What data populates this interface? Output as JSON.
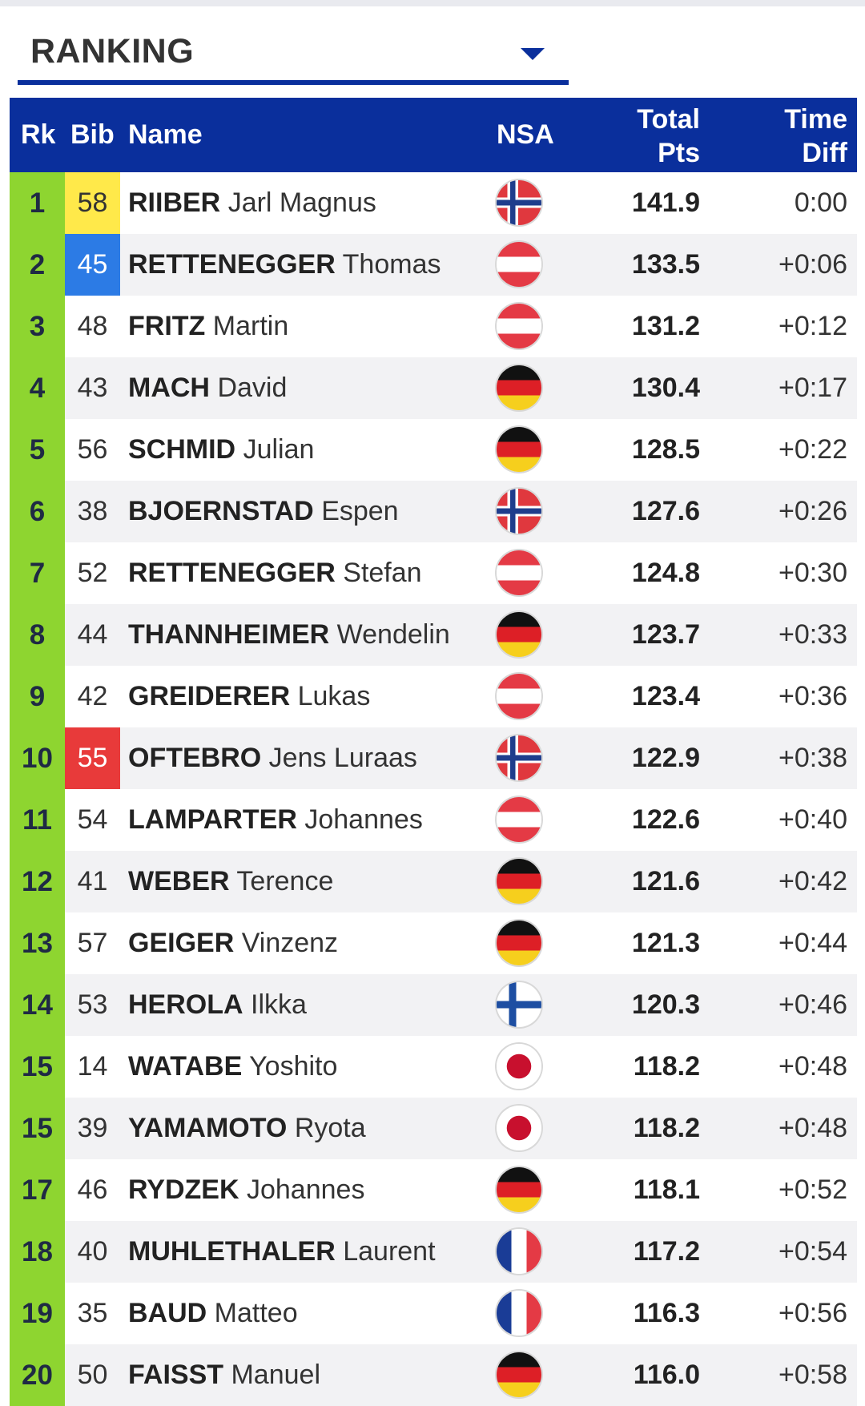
{
  "dropdown": {
    "label": "RANKING"
  },
  "table": {
    "headers": {
      "rk": "Rk",
      "bib": "Bib",
      "name": "Name",
      "nsa": "NSA",
      "pts_line1": "Total",
      "pts_line2": "Pts",
      "diff_line1": "Time",
      "diff_line2": "Diff"
    },
    "rows": [
      {
        "rk": "1",
        "bib": "58",
        "bib_color": "yellow",
        "last": "RIIBER",
        "first": "Jarl Magnus",
        "nsa": "nor",
        "pts": "141.9",
        "diff": "0:00"
      },
      {
        "rk": "2",
        "bib": "45",
        "bib_color": "blue",
        "last": "RETTENEGGER",
        "first": "Thomas",
        "nsa": "aut",
        "pts": "133.5",
        "diff": "+0:06"
      },
      {
        "rk": "3",
        "bib": "48",
        "bib_color": "",
        "last": "FRITZ",
        "first": "Martin",
        "nsa": "aut",
        "pts": "131.2",
        "diff": "+0:12"
      },
      {
        "rk": "4",
        "bib": "43",
        "bib_color": "",
        "last": "MACH",
        "first": "David",
        "nsa": "ger",
        "pts": "130.4",
        "diff": "+0:17"
      },
      {
        "rk": "5",
        "bib": "56",
        "bib_color": "",
        "last": "SCHMID",
        "first": "Julian",
        "nsa": "ger",
        "pts": "128.5",
        "diff": "+0:22"
      },
      {
        "rk": "6",
        "bib": "38",
        "bib_color": "",
        "last": "BJOERNSTAD",
        "first": "Espen",
        "nsa": "nor",
        "pts": "127.6",
        "diff": "+0:26"
      },
      {
        "rk": "7",
        "bib": "52",
        "bib_color": "",
        "last": "RETTENEGGER",
        "first": "Stefan",
        "nsa": "aut",
        "pts": "124.8",
        "diff": "+0:30"
      },
      {
        "rk": "8",
        "bib": "44",
        "bib_color": "",
        "last": "THANNHEIMER",
        "first": "Wendelin",
        "nsa": "ger",
        "pts": "123.7",
        "diff": "+0:33"
      },
      {
        "rk": "9",
        "bib": "42",
        "bib_color": "",
        "last": "GREIDERER",
        "first": "Lukas",
        "nsa": "aut",
        "pts": "123.4",
        "diff": "+0:36"
      },
      {
        "rk": "10",
        "bib": "55",
        "bib_color": "red",
        "last": "OFTEBRO",
        "first": "Jens Luraas",
        "nsa": "nor",
        "pts": "122.9",
        "diff": "+0:38"
      },
      {
        "rk": "11",
        "bib": "54",
        "bib_color": "",
        "last": "LAMPARTER",
        "first": "Johannes",
        "nsa": "aut",
        "pts": "122.6",
        "diff": "+0:40"
      },
      {
        "rk": "12",
        "bib": "41",
        "bib_color": "",
        "last": "WEBER",
        "first": "Terence",
        "nsa": "ger",
        "pts": "121.6",
        "diff": "+0:42"
      },
      {
        "rk": "13",
        "bib": "57",
        "bib_color": "",
        "last": "GEIGER",
        "first": "Vinzenz",
        "nsa": "ger",
        "pts": "121.3",
        "diff": "+0:44"
      },
      {
        "rk": "14",
        "bib": "53",
        "bib_color": "",
        "last": "HEROLA",
        "first": "Ilkka",
        "nsa": "fin",
        "pts": "120.3",
        "diff": "+0:46"
      },
      {
        "rk": "15",
        "bib": "14",
        "bib_color": "",
        "last": "WATABE",
        "first": "Yoshito",
        "nsa": "jpn",
        "pts": "118.2",
        "diff": "+0:48"
      },
      {
        "rk": "15",
        "bib": "39",
        "bib_color": "",
        "last": "YAMAMOTO",
        "first": "Ryota",
        "nsa": "jpn",
        "pts": "118.2",
        "diff": "+0:48"
      },
      {
        "rk": "17",
        "bib": "46",
        "bib_color": "",
        "last": "RYDZEK",
        "first": "Johannes",
        "nsa": "ger",
        "pts": "118.1",
        "diff": "+0:52"
      },
      {
        "rk": "18",
        "bib": "40",
        "bib_color": "",
        "last": "MUHLETHALER",
        "first": "Laurent",
        "nsa": "fra",
        "pts": "117.2",
        "diff": "+0:54"
      },
      {
        "rk": "19",
        "bib": "35",
        "bib_color": "",
        "last": "BAUD",
        "first": "Matteo",
        "nsa": "fra",
        "pts": "116.3",
        "diff": "+0:56"
      },
      {
        "rk": "20",
        "bib": "50",
        "bib_color": "",
        "last": "FAISST",
        "first": "Manuel",
        "nsa": "ger",
        "pts": "116.0",
        "diff": "+0:58"
      }
    ]
  },
  "colors": {
    "header_bg": "#0a2f9c",
    "rank_bg": "#8ed530",
    "bib_yellow": "#ffe94a",
    "bib_blue": "#2c7be5",
    "bib_red": "#e83a3a"
  }
}
